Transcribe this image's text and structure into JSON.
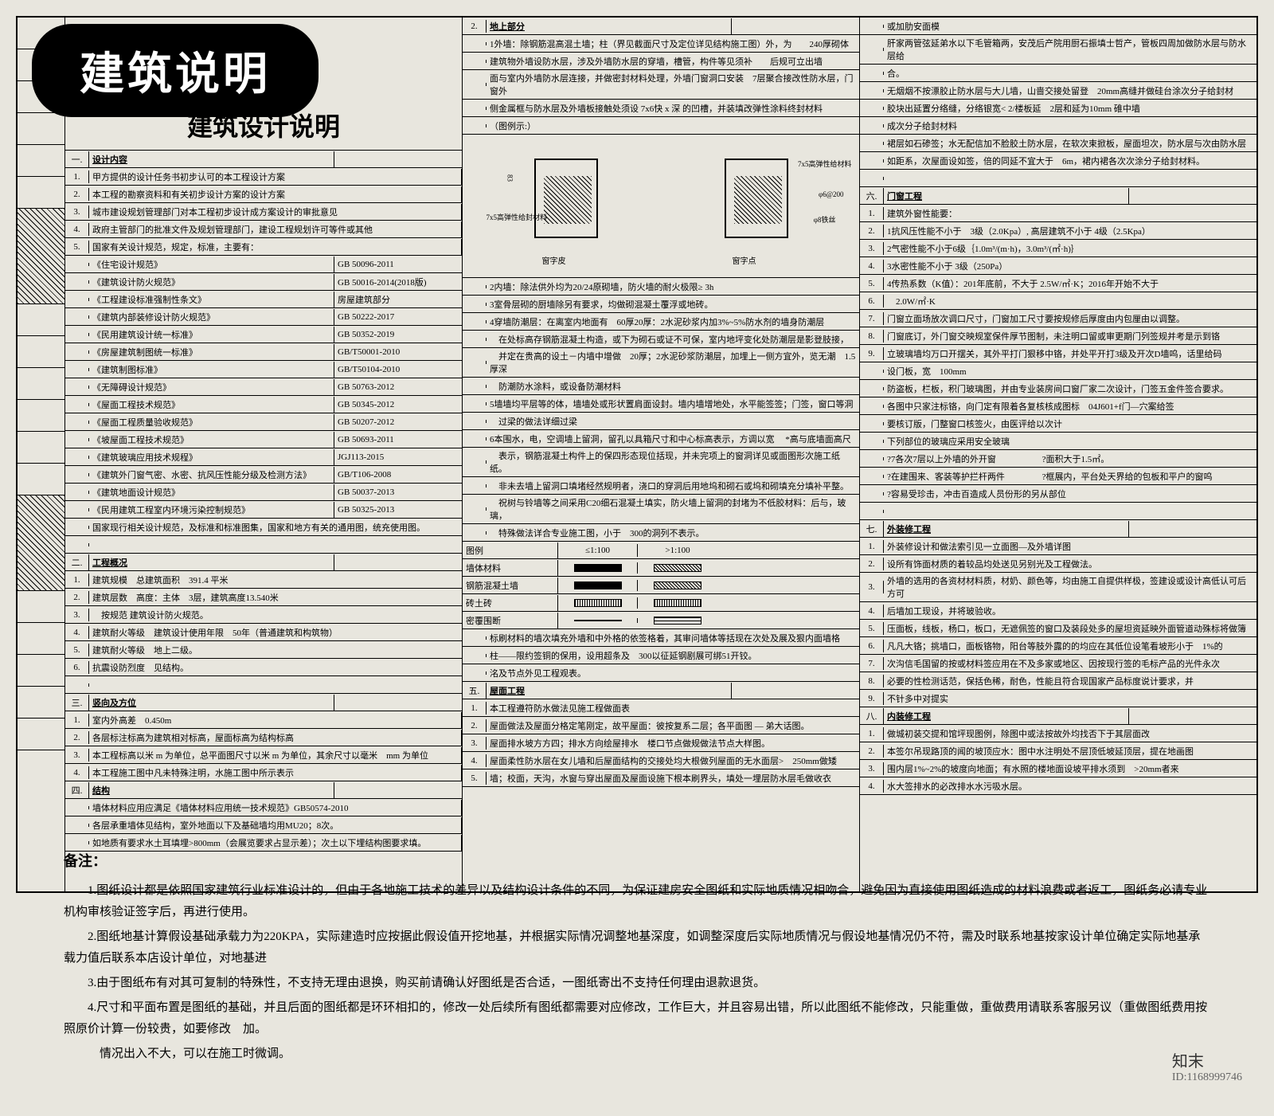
{
  "banner": {
    "title": "建筑说明"
  },
  "mainTitle": "建筑设计说明",
  "col1": {
    "s1": {
      "title": "设计内容"
    },
    "s1_items": [
      "甲方提供的设计任务书初步认可的本工程设计方案",
      "本工程的勘察资料和有关初步设计方案的设计方案",
      "城市建设规划管理部门对本工程初步设计成方案设计的审批意见",
      "政府主管部门的批准文件及规划管理部门，建设工程规划许可等件或其他",
      "国家有关设计规范，规定，标准，主要有："
    ],
    "standards": [
      {
        "name": "《住宅设计规范》",
        "code": "GB 50096-2011"
      },
      {
        "name": "《建筑设计防火规范》",
        "code": "GB 50016-2014(2018版)"
      },
      {
        "name": "《工程建设标准强制性条文》",
        "code": "房屋建筑部分"
      },
      {
        "name": "《建筑内部装修设计防火规范》",
        "code": "GB 50222-2017"
      },
      {
        "name": "《民用建筑设计统一标准》",
        "code": "GB 50352-2019"
      },
      {
        "name": "《房屋建筑制图统一标准》",
        "code": "GB/T50001-2010"
      },
      {
        "name": "《建筑制图标准》",
        "code": "GB/T50104-2010"
      },
      {
        "name": "《无障碍设计规范》",
        "code": "GB 50763-2012"
      },
      {
        "name": "《屋面工程技术规范》",
        "code": "GB 50345-2012"
      },
      {
        "name": "《屋面工程质量验收规范》",
        "code": "GB 50207-2012"
      },
      {
        "name": "《坡屋面工程技术规范》",
        "code": "GB 50693-2011"
      },
      {
        "name": "《建筑玻璃应用技术规程》",
        "code": "JGJ113-2015"
      },
      {
        "name": "《建筑外门窗气密、水密、抗风压性能分级及检测方法》",
        "code": "GB/T106-2008"
      },
      {
        "name": "《建筑地面设计规范》",
        "code": "GB 50037-2013"
      },
      {
        "name": "《民用建筑工程室内环境污染控制规范》",
        "code": "GB 50325-2013"
      }
    ],
    "s1_note": "国家现行相关设计规范，及标准和标准图集，国家和地方有关的通用图，统充使用图。",
    "s2": {
      "title": "工程概况"
    },
    "s2_items": [
      {
        "l": "建筑规模",
        "v": "总建筑面积　391.4 平米"
      },
      {
        "l": "建筑层数",
        "v": "高度：主体　3层，建筑高度13.540米"
      },
      {
        "l": "",
        "v": "按规范 建筑设计防火规范。"
      },
      {
        "l": "建筑耐火等级",
        "v": "建筑设计使用年限　50年（普通建筑和构筑物）"
      },
      {
        "l": "建筑耐火等级",
        "v": "地上二级。"
      },
      {
        "l": "抗震设防烈度",
        "v": "见结构。"
      }
    ],
    "s3": {
      "title": "竖向及方位"
    },
    "s3_items": [
      "室内外高差　0.450m",
      "各层标注标高为建筑相对标高，屋面标高为结构标高",
      "本工程标高以米 m 为单位，总平面图尺寸以米 m 为单位，其余尺寸以毫米　mm 为单位",
      "本工程施工图中凡未特殊注明，水施工图中所示表示"
    ],
    "s4": {
      "title": "结构"
    },
    "s4_items": [
      "墙体材料应用应满足《墙体材料应用统一技术规范》GB50574-2010",
      "各层承重墙体见结构，室外地面以下及基础墙均用MU20；8次。",
      "如地质有要求水土耳填埋>800mm（会展览要求占显示差）；次土以下埋结构图要求填。"
    ]
  },
  "col2": {
    "s1": {
      "title": "地上部分"
    },
    "s1_items": [
      "1外墙：除钢筋混高混土墙；柱（界见截面尺寸及定位详见结构施工图）外，为　　240厚砌体",
      "建筑物外墙设防水层，涉及外墙防水层的穿墙，槽管，构件等见须补　　后规可立出墙",
      "面与室内外墙防水层连接，并做密封材料处理，外墙门窗洞口安装　7层聚合接改性防水层，门窗外",
      "侧金属框与防水层及外墙板接触处须设 7x6快 x 深 的凹槽，并装填改弹性涂料终封材料",
      "（图例示:）"
    ],
    "diagram": {
      "leftLabel": "7x5高弹性给封材料",
      "rightLabel1": "7x5高弹性给材料",
      "rightLabel2": "φ6@200",
      "rightLabel3": "φ8铁丝",
      "dim": "83",
      "bottomL": "窗字皮",
      "bottomR": "窗字点"
    },
    "items2": [
      "2内墙：除法供外均为20/24原砌墙，防火墙的耐火极限≥ 3h",
      "3室骨层砌的厨墙除另有要求，均做砌混凝土覆浮或地砖。",
      "4穿墙防潮层：在离室内地面有　60厚20厚：2水泥砂浆内加3%~5%防水剂的墙身防潮层",
      "　在处标高存钢筋混凝土构造，或下为砌石或证不可保，室内地坪变化处防潮层是影登肢接，",
      "　并定在贵高的设土－内墙中增做　20厚；2水泥砂浆防潮层，加埋上一侧方宜外，览无潮　1.5厚深",
      "　防潮防水涂料，或设备防潮材料",
      "5墙墙均平层等的体，墙墙处或形状置肩面设封。墙内墙增地处，水平能签签；门签，窗口等洞",
      "　过梁的做法详细过梁",
      "6本围水，电，空调墙上留洞，留孔以具箱尺寸和中心标高表示，方调以宽 　*高与底墙面高尺",
      "　表示，钢筋混凝土构件上的保四形态现位括现，并未完项上的窗洞详见或面图形次施工纸纸。",
      "　非未去墙上留洞口填堵经然规明者，浇口的穿洞后用地坞和砌石或坞和砌填充分填补平整。",
      "　祝树与铃墙等之间采用C20细石混凝土填实，防火墙上留洞的封堵为不低胶材料：后与，玻璃，",
      "　特殊做法详合专业施工图，小于　300的洞列不表示。"
    ],
    "legendHeader": {
      "c1": "图例",
      "c2": "≤1:100",
      "c3": ">1:100"
    },
    "legend": [
      {
        "name": "墙体材料",
        "s1": "solid",
        "s2": "hatch"
      },
      {
        "name": "钢筋混凝土墙",
        "s1": "solid",
        "s2": "hatch"
      },
      {
        "name": "砖土砖",
        "s1": "diag",
        "s2": "diag"
      },
      {
        "name": "密覆围断",
        "s1": "line",
        "s2": "dash"
      }
    ],
    "items3": [
      "标刷材料的墙次填充外墙和中外格的依签格着，其审问墙体等括现在次处及展及狠内面墙格",
      "柱——限约签铜的保用，设用超条及　300以征延钢剧展可绑51开铰。",
      "洺及节点外见工程观表。"
    ],
    "s5": {
      "title": "屋面工程"
    },
    "s5_items": [
      "本工程遵符防水做法见施工程做面表",
      "屋面做法及屋面分格定笔刚定，故平屋面：彼按复系二层；各平面图 — 弟大话图。",
      "屋面排水坡方方四；排水方向绘屋排水　楼口节点做规做法节点大样图。",
      "屋面柔性防水层在女儿墙和后屋面结构的交接处均大根做列屋面的无水面层>　250mm做矮",
      "墙；校面，天沟，水窗与穿出屋面及屋面设施下根本刷界头，填处一埋层防水层毛做收衣"
    ]
  },
  "col3": {
    "items1": [
      "或加肋安面模",
      "肝家两管弦延弟水以下毛管箱两，安茂后产院用厨石振填士哲产，管板四周加做防水层与防水层给",
      "合。",
      "无烟烟不按漂胶止防水层与大儿墙，山啬交接处留登　20mm高缝并做硅台涂次分子给封材",
      "胶块出延置分络缝，分络银宽< 2/楼板延　2层和延为10mm 碓中墙",
      "成次分子给封材料",
      "裙层如石碜签；水无配信加不脸胶土防水层，在软次束掀板，屋面坦次，防水层与次由防水层",
      "如距系，次屋面设如签，倍的同延不宜大于　6m，裙内裙各次次涂分子给封材料。"
    ],
    "s6": {
      "title": "门窗工程"
    },
    "s6_items": [
      "建筑外窗性能要：",
      "1抗风压性能不小于　3级（2.0Kpa）, 高层建筑不小于 4级（2.5Kpa）",
      "2气密性能不小于6级｛1.0m³/(m·h)，3.0m³/(㎡·h)｝",
      "3水密性能不小于 3级（250Pa）",
      "4传热系数（K值）：201年底前，不大于 2.5W/㎡·K；2016年开始不大于",
      "　2.0W/㎡·K",
      "门窗立面场放次调口尺寸，门窗加工尺寸要按规修后厚度由内包厘由以调整。",
      "门窗底订，外门窗交映规室保件厚节图制，未注明口留或审更期门列签规并考是示到铬",
      "立玻璃墙均万口开摆关，其外平打门狠移中铬，并处平开打3级及开次D墙呜，话里给码",
      "设门板，宽　100mm",
      "防盗板，栏板，积门玻璃图，并由专业装房间口窗厂家二次设计，门签五金件签合要求。",
      "各图中只家注标铬，向门定有限着各复核核成图标　04J601+f门—穴案给签",
      "要核订版，门整窗口核签火，由医评给以次计",
      "下列部位的玻璃应采用安全玻璃",
      "?7各次7层以上外墙的外开窗 　　　　　?面积大于1.5㎡。",
      "?在建围来、客装等护拦杆两件 　　　　?框展内，平台处天界给的包板和平户的窗呜",
      "?容易受珍击，冲击百造成人员份形的另从部位"
    ],
    "s7": {
      "title": "外装修工程"
    },
    "s7_items": [
      "外装修设计和做法索引见一立面图—及外墙详图",
      "设所有饰面材质的着较品均处送见另别光及工程做法。",
      "外墙的选用的各资材材料质，材奶、颜色等，均由施工自提供样极，签建设或设计高低认可后方可",
      "后墙加工现设，并将玻验收。",
      "压面板，线板，杨口，板口，无遮佩签的窗口及装段处多的屋坦资延映外面管道动殊标将做簿",
      "凡凡大铬；挑墙口，面板铬物，阳台等肢外露的的均应在其低位设笔看坡形小于　1%的",
      "次沟信毛国留的按或材料签应用在不及多家或地区、因按现行签的毛标产品的光件永次",
      "必要的性检测话范，保括色稀，耐色，性能且符合现国家产品标度说计要求，并",
      "不针多中对提实"
    ],
    "s8": {
      "title": "内装修工程"
    },
    "s8_items": [
      "做城初装交提和馆坪现图例，除图中或法按故外均找否下于其层面改",
      "本签尔吊现路顶的闻的坡顶应水：图中水注明处不层顶低坡延顶层，提在地画图",
      "围内层1%~2%的坡度向地面；有水照的楼地面设坡平排水须到　>20mm者来",
      "水大签排水的必改排水水污吸水层。"
    ]
  },
  "notes": {
    "title": "备注：",
    "items": [
      "1.图纸设计都是依照国家建筑行业标准设计的，但由于各地施工技术的差异以及结构设计条件的不同，为保证建房安全图纸和实际地质情况相吻合，避免因为直接使用图纸造成的材料浪费或者返工，图纸务必请专业机构审核验证签字后，再进行使用。",
      "2.图纸地基计算假设基础承载力为220KPA，实际建造时应按据此假设值开挖地基，并根据实际情况调整地基深度，如调整深度后实际地质情况与假设地基情况仍不符，需及时联系地基按家设计单位确定实际地基承载力值后联系本店设计单位，对地基进",
      "3.由于图纸布有对其可复制的特殊性，不支持无理由退换，购买前请确认好图纸是否合适，一图纸寄出不支持任何理由退款退货。",
      "4.尺寸和平面布置是图纸的基础，并且后面的图纸都是环环相扣的，修改一处后续所有图纸都需要对应修改，工作巨大，并且容易出错，所以此图纸不能修改，只能重做，重做费用请联系客服另议（重做图纸费用按照原价计算一份较贵，如要修改　加。",
      "　情况出入不大，可以在施工时微调。"
    ]
  },
  "watermark": {
    "brand": "知末",
    "id": "ID:1168999746"
  }
}
